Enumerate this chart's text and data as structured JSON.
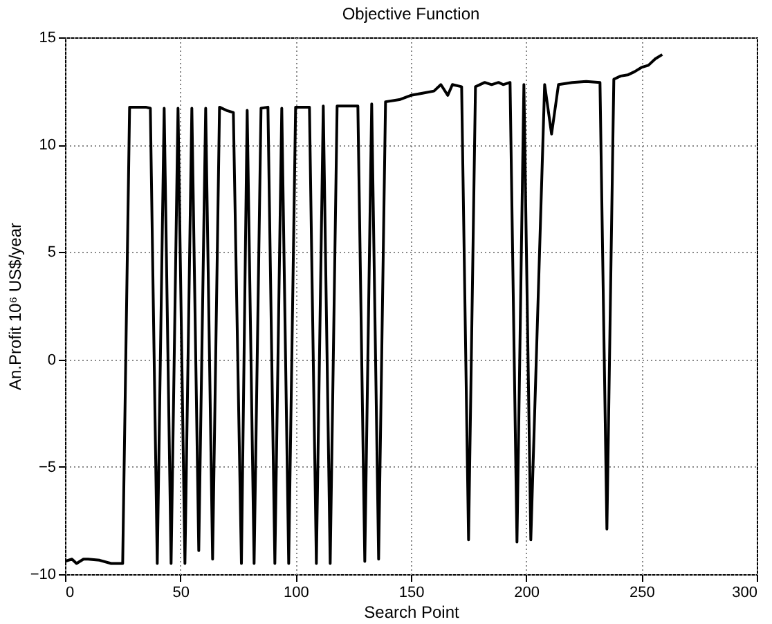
{
  "chart_data": {
    "type": "line",
    "title": "Objective Function",
    "xlabel": "Search Point",
    "ylabel": "An.Profit 10⁶ US$/year",
    "series": [
      {
        "color": "#000000",
        "x": [
          0,
          3,
          5,
          8,
          10,
          15,
          20,
          25,
          28,
          35,
          37,
          40,
          43,
          46,
          49,
          52,
          55,
          58,
          61,
          64,
          67,
          70,
          73,
          76.5,
          79,
          82,
          85,
          88,
          91,
          94,
          97,
          100,
          106,
          109,
          112,
          115,
          118,
          127,
          130,
          133,
          136,
          139,
          145,
          150,
          155,
          160,
          163,
          166,
          168,
          172,
          175,
          178,
          182,
          185,
          188,
          190,
          193,
          196,
          199,
          202,
          208,
          211,
          214,
          220,
          226,
          232,
          235,
          238,
          241,
          244,
          247,
          250,
          253,
          256,
          259
        ],
        "values": [
          -9.4,
          -9.3,
          -9.5,
          -9.3,
          -9.3,
          -9.35,
          -9.5,
          -9.5,
          11.75,
          11.75,
          11.7,
          -9.5,
          11.7,
          -9.5,
          11.7,
          -9.5,
          11.7,
          -8.9,
          11.7,
          -9.3,
          11.75,
          11.6,
          11.5,
          -9.5,
          11.6,
          -9.5,
          11.7,
          11.75,
          -9.5,
          11.7,
          -9.5,
          11.75,
          11.75,
          -9.5,
          11.8,
          -9.5,
          11.8,
          11.8,
          -9.4,
          11.9,
          -9.3,
          12.0,
          12.1,
          12.3,
          12.4,
          12.5,
          12.8,
          12.3,
          12.8,
          12.7,
          -8.4,
          12.7,
          12.9,
          12.8,
          12.9,
          12.8,
          12.9,
          -8.5,
          12.8,
          -8.4,
          12.8,
          10.5,
          12.8,
          12.9,
          12.95,
          12.9,
          -7.9,
          13.05,
          13.2,
          13.25,
          13.4,
          13.6,
          13.7,
          14.0,
          14.2
        ]
      }
    ],
    "xlim": [
      0,
      300
    ],
    "xticks": [
      0,
      50,
      100,
      150,
      200,
      250,
      300
    ],
    "ylim": [
      -10,
      15
    ],
    "yticks": [
      -10,
      -5,
      0,
      5,
      10,
      15
    ],
    "grid": true,
    "marker": "none",
    "line_style": "solid"
  }
}
